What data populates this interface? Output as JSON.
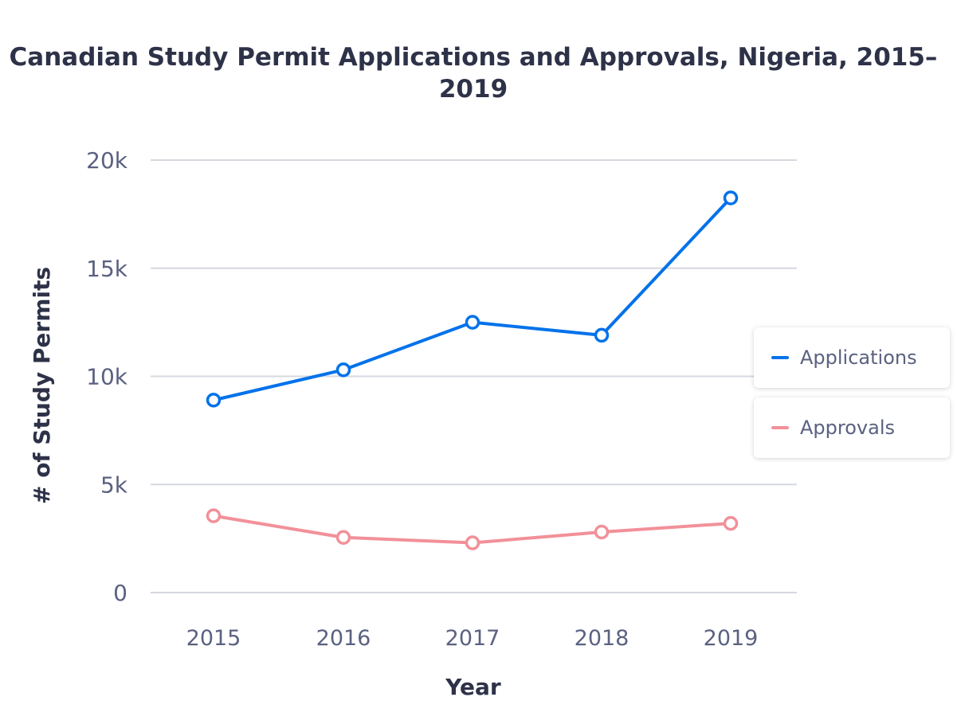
{
  "chart_data": {
    "type": "line",
    "title": "Canadian Study Permit Applications and Approvals, Nigeria, 2015–2019",
    "xlabel": "Year",
    "ylabel": "# of Study Permits",
    "categories": [
      "2015",
      "2016",
      "2017",
      "2018",
      "2019"
    ],
    "yticks": [
      0,
      5000,
      10000,
      15000,
      20000
    ],
    "ytick_labels": [
      "0",
      "5k",
      "10k",
      "15k",
      "20k"
    ],
    "ylim": [
      0,
      20000
    ],
    "grid": true,
    "legend_placement": "right",
    "series": [
      {
        "name": "Applications",
        "color": "#0072ea",
        "values": [
          8900,
          10300,
          12500,
          11900,
          18250
        ]
      },
      {
        "name": "Approvals",
        "color": "#f29099",
        "values": [
          3550,
          2550,
          2300,
          2800,
          3200
        ]
      }
    ]
  }
}
